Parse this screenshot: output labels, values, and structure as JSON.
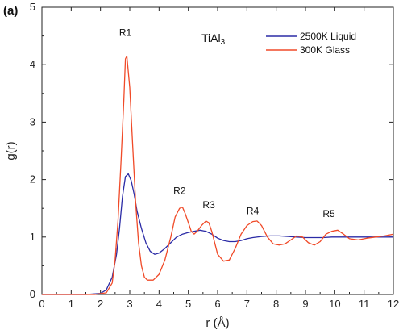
{
  "chart_data": {
    "type": "line",
    "panel_label": "(a)",
    "title": "",
    "compound_label": {
      "main": "TiAl",
      "sub": "3"
    },
    "xlabel": "r (Å)",
    "ylabel": "g(r)",
    "xlim": [
      0,
      12
    ],
    "ylim": [
      0,
      5
    ],
    "x_ticks": [
      0,
      1,
      2,
      3,
      4,
      5,
      6,
      7,
      8,
      9,
      10,
      11,
      12
    ],
    "y_ticks": [
      0,
      1,
      2,
      3,
      4,
      5
    ],
    "grid": false,
    "legend_position": "top-right",
    "series": [
      {
        "name": "2500K Liquid",
        "color": "#2b2ba6",
        "x": [
          0,
          1.5,
          2.0,
          2.2,
          2.4,
          2.55,
          2.65,
          2.75,
          2.85,
          2.95,
          3.05,
          3.15,
          3.25,
          3.4,
          3.55,
          3.7,
          3.85,
          4.0,
          4.2,
          4.4,
          4.6,
          4.8,
          5.0,
          5.2,
          5.4,
          5.6,
          5.8,
          6.0,
          6.2,
          6.4,
          6.6,
          6.8,
          7.0,
          7.2,
          7.5,
          7.8,
          8.1,
          8.4,
          8.7,
          9.0,
          9.3,
          9.6,
          9.9,
          10.2,
          10.5,
          10.8,
          11.1,
          11.4,
          11.7,
          12.0
        ],
        "y": [
          0,
          0,
          0.02,
          0.08,
          0.3,
          0.7,
          1.15,
          1.7,
          2.05,
          2.1,
          1.98,
          1.75,
          1.45,
          1.15,
          0.9,
          0.75,
          0.7,
          0.72,
          0.8,
          0.9,
          1.0,
          1.05,
          1.08,
          1.1,
          1.12,
          1.1,
          1.05,
          0.98,
          0.94,
          0.92,
          0.92,
          0.94,
          0.97,
          0.99,
          1.01,
          1.02,
          1.02,
          1.01,
          1.0,
          0.99,
          0.99,
          0.99,
          1.0,
          1.0,
          1.0,
          1.0,
          1.0,
          1.0,
          1.0,
          1.0
        ]
      },
      {
        "name": "300K Glass",
        "color": "#f04a28",
        "x": [
          0,
          1.8,
          2.2,
          2.4,
          2.5,
          2.6,
          2.7,
          2.8,
          2.85,
          2.9,
          3.0,
          3.1,
          3.2,
          3.3,
          3.4,
          3.5,
          3.6,
          3.8,
          4.0,
          4.2,
          4.4,
          4.55,
          4.7,
          4.8,
          4.9,
          5.0,
          5.1,
          5.2,
          5.3,
          5.45,
          5.6,
          5.7,
          5.8,
          5.9,
          6.0,
          6.2,
          6.4,
          6.6,
          6.8,
          7.0,
          7.2,
          7.35,
          7.5,
          7.7,
          7.9,
          8.1,
          8.3,
          8.5,
          8.7,
          8.9,
          9.1,
          9.3,
          9.5,
          9.7,
          9.9,
          10.1,
          10.3,
          10.5,
          10.8,
          11.1,
          11.4,
          11.7,
          12.0
        ],
        "y": [
          0,
          0,
          0.03,
          0.2,
          0.6,
          1.3,
          2.3,
          3.4,
          4.1,
          4.15,
          3.6,
          2.6,
          1.6,
          0.9,
          0.5,
          0.3,
          0.25,
          0.25,
          0.35,
          0.6,
          1.0,
          1.35,
          1.5,
          1.52,
          1.4,
          1.25,
          1.1,
          1.05,
          1.1,
          1.2,
          1.28,
          1.25,
          1.1,
          0.9,
          0.7,
          0.58,
          0.6,
          0.8,
          1.05,
          1.2,
          1.27,
          1.28,
          1.2,
          1.0,
          0.88,
          0.86,
          0.88,
          0.95,
          1.02,
          1.0,
          0.9,
          0.86,
          0.92,
          1.05,
          1.1,
          1.12,
          1.05,
          0.97,
          0.95,
          0.98,
          1.0,
          1.02,
          1.05
        ]
      }
    ],
    "annotations": [
      {
        "text": "R1",
        "x": 2.85,
        "y": 4.5
      },
      {
        "text": "R2",
        "x": 4.7,
        "y": 1.75
      },
      {
        "text": "R3",
        "x": 5.7,
        "y": 1.5
      },
      {
        "text": "R4",
        "x": 7.2,
        "y": 1.4
      },
      {
        "text": "R5",
        "x": 9.8,
        "y": 1.35
      }
    ]
  }
}
